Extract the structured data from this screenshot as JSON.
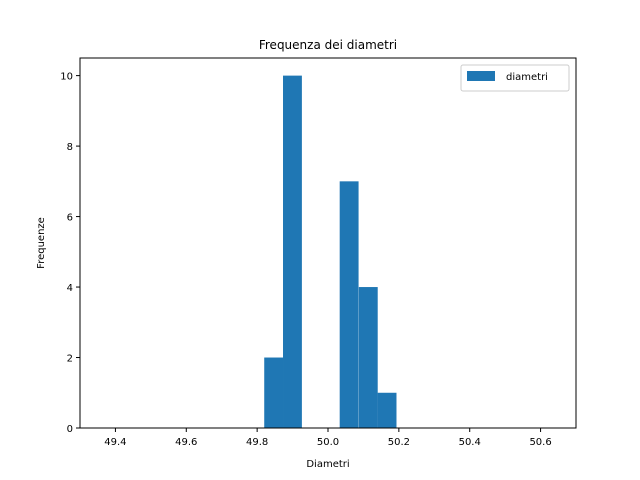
{
  "chart_data": {
    "type": "bar",
    "title": "Frequenza dei diametri",
    "xlabel": "Diametri",
    "ylabel": "Frequenze",
    "xlim": [
      49.3,
      50.7
    ],
    "ylim": [
      0,
      10.5
    ],
    "xticks": [
      49.4,
      49.6,
      49.8,
      50.0,
      50.2,
      50.4,
      50.6
    ],
    "yticks": [
      0,
      2,
      4,
      6,
      8,
      10
    ],
    "bin_width": 0.0533,
    "series": [
      {
        "name": "diametri",
        "color": "#1f77b4",
        "bins": [
          {
            "start": 49.82,
            "value": 2
          },
          {
            "start": 49.873,
            "value": 10
          },
          {
            "start": 49.927,
            "value": 0
          },
          {
            "start": 49.98,
            "value": 0
          },
          {
            "start": 50.033,
            "value": 7
          },
          {
            "start": 50.087,
            "value": 4
          },
          {
            "start": 50.14,
            "value": 1
          }
        ]
      }
    ],
    "grid": false,
    "legend_position": "top-right"
  }
}
